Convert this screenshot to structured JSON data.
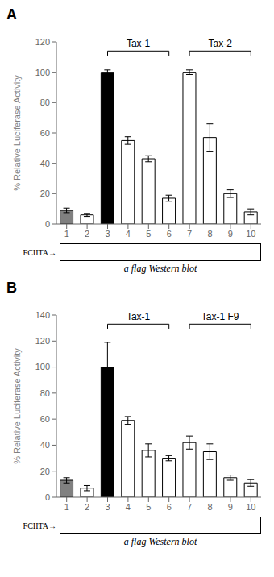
{
  "chart_data": [
    {
      "type": "bar",
      "title": "A",
      "categories": [
        "1",
        "2",
        "3",
        "4",
        "5",
        "6",
        "7",
        "8",
        "9",
        "10"
      ],
      "values": [
        9,
        6,
        100,
        55,
        43,
        17,
        100,
        57,
        20,
        8
      ],
      "errors": [
        1.5,
        1.0,
        1.5,
        2.5,
        2.0,
        2.0,
        1.5,
        9.0,
        2.5,
        2.0
      ],
      "colors": [
        "gray",
        "white",
        "black",
        "white",
        "white",
        "white",
        "white",
        "white",
        "white",
        "white"
      ],
      "ylim": [
        0,
        120
      ],
      "yticks": [
        0,
        20,
        40,
        60,
        80,
        100,
        120
      ],
      "ylabel": "% Relative Luciferase Activity",
      "grid": false,
      "annotations": [
        {
          "text": "Tax-1",
          "x_start": 3,
          "x_end": 6,
          "y": 114
        },
        {
          "text": "Tax-2",
          "x_start": 7,
          "x_end": 10,
          "y": 114
        },
        {
          "text": "FCIITA→"
        },
        {
          "text": "a flag Western blot"
        }
      ]
    },
    {
      "type": "bar",
      "title": "B",
      "categories": [
        "1",
        "2",
        "3",
        "4",
        "5",
        "6",
        "7",
        "8",
        "9",
        "10"
      ],
      "values": [
        13,
        7,
        100,
        59,
        36,
        30,
        42,
        35,
        15,
        11
      ],
      "errors": [
        2.0,
        2.0,
        19.0,
        3.0,
        5.0,
        2.0,
        5.0,
        6.0,
        2.0,
        2.5
      ],
      "colors": [
        "gray",
        "white",
        "black",
        "white",
        "white",
        "white",
        "white",
        "white",
        "white",
        "white"
      ],
      "ylim": [
        0,
        140
      ],
      "yticks": [
        0,
        20,
        40,
        60,
        80,
        100,
        120,
        140
      ],
      "ylabel": "% Relative Luciferase Activity",
      "grid": false,
      "annotations": [
        {
          "text": "Tax-1",
          "x_start": 3,
          "x_end": 6,
          "y": 133
        },
        {
          "text": "Tax-1 F9",
          "x_start": 7,
          "x_end": 10,
          "y": 133
        },
        {
          "text": "FCIITA→"
        },
        {
          "text": "a flag Western blot"
        }
      ]
    }
  ]
}
